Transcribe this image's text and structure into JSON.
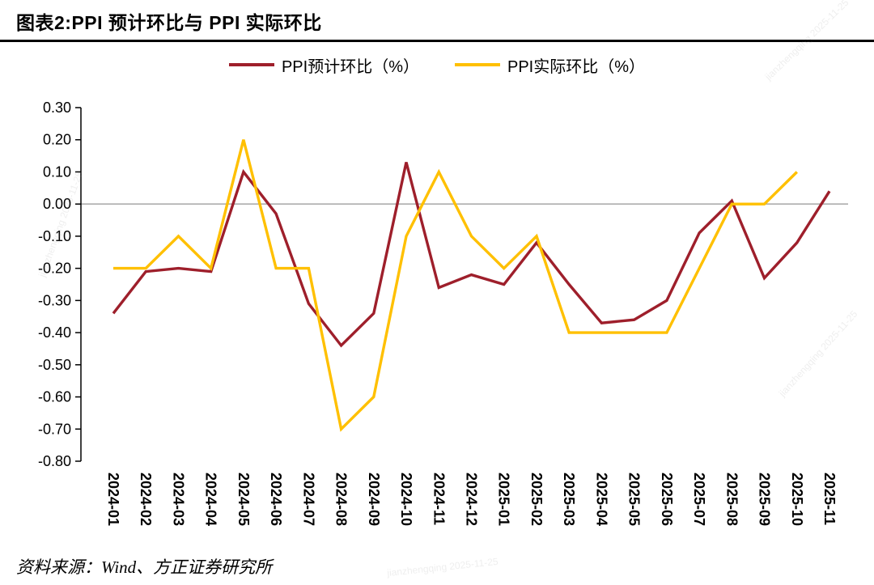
{
  "header": {
    "title": "图表2:PPI 预计环比与 PPI 实际环比"
  },
  "chart_data": {
    "type": "line",
    "title": "图表2:PPI 预计环比与 PPI 实际环比",
    "categories": [
      "2024-01",
      "2024-02",
      "2024-03",
      "2024-04",
      "2024-05",
      "2024-06",
      "2024-07",
      "2024-08",
      "2024-09",
      "2024-10",
      "2024-11",
      "2024-12",
      "2025-01",
      "2025-02",
      "2025-03",
      "2025-04",
      "2025-05",
      "2025-06",
      "2025-07",
      "2025-08",
      "2025-09",
      "2025-10",
      "2025-11"
    ],
    "series": [
      {
        "name": "PPI预计环比（%）",
        "color": "#9E1F2B",
        "values": [
          -0.34,
          -0.21,
          -0.2,
          -0.21,
          0.1,
          -0.03,
          -0.31,
          -0.44,
          -0.34,
          0.13,
          -0.26,
          -0.22,
          -0.25,
          -0.12,
          -0.25,
          -0.37,
          -0.36,
          -0.3,
          -0.09,
          0.01,
          -0.23,
          -0.12,
          0.04
        ]
      },
      {
        "name": "PPI实际环比（%）",
        "color": "#FFC000",
        "values": [
          -0.2,
          -0.2,
          -0.1,
          -0.2,
          0.2,
          -0.2,
          -0.2,
          -0.7,
          -0.6,
          -0.1,
          0.1,
          -0.1,
          -0.2,
          -0.1,
          -0.4,
          -0.4,
          -0.4,
          -0.4,
          -0.2,
          0.0,
          0.0,
          0.1,
          null
        ]
      }
    ],
    "ylim": [
      -0.8,
      0.3
    ],
    "ytick_step": 0.1,
    "ytick_labels": [
      "0.30",
      "0.20",
      "0.10",
      "0.00",
      "-0.10",
      "-0.20",
      "-0.30",
      "-0.40",
      "-0.50",
      "-0.60",
      "-0.70",
      "-0.80"
    ],
    "grid": "zero-line-only",
    "zero_line_color": "#A6A6A6",
    "legend_position": "top"
  },
  "footer": {
    "source": "资料来源：Wind、方正证券研究所"
  },
  "watermark": {
    "text": "jianzhengqing 2025-11-25"
  }
}
